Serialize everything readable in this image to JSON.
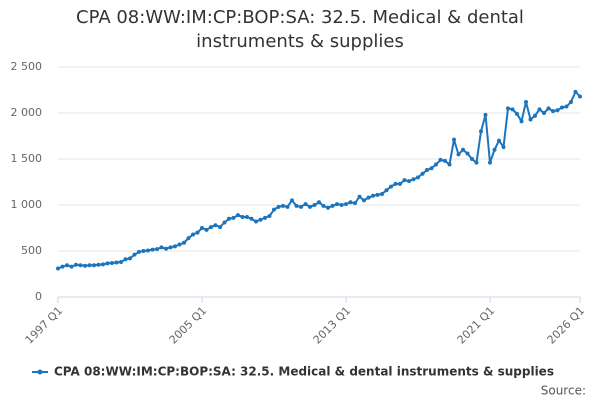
{
  "chart_data": {
    "type": "line",
    "title": "CPA 08:WW:IM:CP:BOP:SA: 32.5. Medical & dental instruments & supplies",
    "source": "Source:",
    "categories": [
      "1997 Q1",
      null,
      null,
      null,
      null,
      null,
      null,
      null,
      null,
      null,
      null,
      null,
      null,
      null,
      null,
      null,
      null,
      null,
      null,
      null,
      null,
      null,
      null,
      null,
      null,
      null,
      null,
      null,
      null,
      null,
      null,
      null,
      "2005 Q1",
      null,
      null,
      null,
      null,
      null,
      null,
      null,
      null,
      null,
      null,
      null,
      null,
      null,
      null,
      null,
      null,
      null,
      null,
      null,
      null,
      null,
      null,
      null,
      null,
      null,
      null,
      null,
      null,
      null,
      null,
      null,
      "2013 Q1",
      null,
      null,
      null,
      null,
      null,
      null,
      null,
      null,
      null,
      null,
      null,
      null,
      null,
      null,
      null,
      null,
      null,
      null,
      null,
      null,
      null,
      null,
      null,
      null,
      null,
      null,
      null,
      null,
      null,
      null,
      null,
      "2021 Q1",
      null,
      null,
      null,
      null,
      null,
      null,
      null,
      null,
      null,
      null,
      null,
      null,
      null,
      null,
      null,
      null,
      null,
      null,
      null,
      "2026 Q1"
    ],
    "series": [
      {
        "name": "CPA 08:WW:IM:CP:BOP:SA: 32.5. Medical & dental instruments & supplies",
        "color": "#1c75bc",
        "values": [
          310,
          330,
          345,
          330,
          350,
          345,
          340,
          345,
          345,
          350,
          355,
          365,
          370,
          375,
          380,
          410,
          420,
          460,
          490,
          500,
          505,
          515,
          520,
          540,
          525,
          540,
          550,
          570,
          590,
          640,
          680,
          700,
          750,
          730,
          760,
          780,
          760,
          810,
          850,
          860,
          890,
          870,
          870,
          850,
          820,
          840,
          860,
          880,
          950,
          980,
          990,
          980,
          1050,
          990,
          980,
          1010,
          980,
          1000,
          1030,
          990,
          970,
          990,
          1010,
          1000,
          1010,
          1030,
          1020,
          1090,
          1050,
          1080,
          1100,
          1110,
          1120,
          1160,
          1200,
          1230,
          1230,
          1270,
          1260,
          1280,
          1300,
          1340,
          1380,
          1400,
          1440,
          1490,
          1480,
          1440,
          1710,
          1550,
          1600,
          1560,
          1500,
          1460,
          1800,
          1980,
          1460,
          1600,
          1700,
          1630,
          2050,
          2040,
          1990,
          1910,
          2120,
          1930,
          1970,
          2040,
          2000,
          2050,
          2020,
          2030,
          2060,
          2070,
          2120,
          2230,
          2180
        ]
      }
    ],
    "ylim": [
      0,
      2500
    ],
    "yticks": [
      0,
      500,
      {
        "value": 1000,
        "label": "1 000"
      },
      {
        "value": 1500,
        "label": "1 500"
      },
      {
        "value": 2000,
        "label": "2 000"
      },
      {
        "value": 2500,
        "label": "2 500"
      }
    ],
    "grid": true
  }
}
